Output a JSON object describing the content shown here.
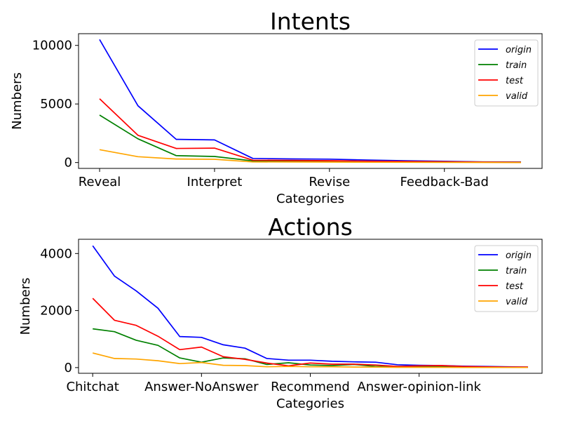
{
  "chart_data": [
    {
      "type": "line",
      "title": "Intents",
      "xlabel": "Categories",
      "ylabel": "Numbers",
      "x_tick_labels": [
        "Reveal",
        "Interpret",
        "Revise",
        "Feedback-Bad"
      ],
      "x_tick_positions": [
        0,
        3,
        6,
        9
      ],
      "yticks": [
        0,
        5000,
        10000
      ],
      "ylim": [
        -500,
        11000
      ],
      "xlim": [
        -0.55,
        11.55
      ],
      "legend_position": "top-right",
      "x": [
        0,
        1,
        2,
        3,
        4,
        5,
        6,
        7,
        8,
        9,
        10,
        11
      ],
      "series": [
        {
          "name": "origin",
          "color": "#0000ff",
          "values": [
            10500,
            4850,
            1980,
            1930,
            350,
            310,
            290,
            210,
            150,
            110,
            60,
            50
          ]
        },
        {
          "name": "train",
          "color": "#008000",
          "values": [
            4050,
            2030,
            590,
            520,
            140,
            120,
            110,
            90,
            70,
            50,
            30,
            25
          ]
        },
        {
          "name": "test",
          "color": "#ff0000",
          "values": [
            5450,
            2330,
            1200,
            1230,
            200,
            180,
            160,
            120,
            90,
            70,
            40,
            30
          ]
        },
        {
          "name": "valid",
          "color": "#ffa500",
          "values": [
            1100,
            500,
            300,
            280,
            50,
            45,
            40,
            30,
            20,
            15,
            10,
            5
          ]
        }
      ]
    },
    {
      "type": "line",
      "title": "Actions",
      "xlabel": "Categories",
      "ylabel": "Numbers",
      "x_tick_labels": [
        "Chitchat",
        "Answer-NoAnswer",
        "Recommend",
        "Answer-opinion-link"
      ],
      "x_tick_positions": [
        0,
        5,
        10,
        15
      ],
      "yticks": [
        0,
        2000,
        4000
      ],
      "ylim": [
        -200,
        4500
      ],
      "xlim": [
        -0.65,
        20.65
      ],
      "legend_position": "top-right",
      "x": [
        0,
        1,
        2,
        3,
        4,
        5,
        6,
        7,
        8,
        9,
        10,
        11,
        12,
        13,
        14,
        15,
        16,
        17,
        18,
        19,
        20
      ],
      "series": [
        {
          "name": "origin",
          "color": "#0000ff",
          "values": [
            4270,
            3210,
            2690,
            2080,
            1090,
            1060,
            800,
            680,
            320,
            260,
            260,
            220,
            200,
            190,
            100,
            80,
            70,
            50,
            40,
            30,
            20
          ]
        },
        {
          "name": "train",
          "color": "#008000",
          "values": [
            1360,
            1260,
            960,
            780,
            340,
            190,
            340,
            310,
            110,
            170,
            90,
            70,
            110,
            40,
            40,
            40,
            30,
            20,
            15,
            10,
            10
          ]
        },
        {
          "name": "test",
          "color": "#ff0000",
          "values": [
            2430,
            1660,
            1480,
            1100,
            630,
            720,
            380,
            290,
            160,
            60,
            160,
            120,
            120,
            90,
            40,
            60,
            70,
            40,
            30,
            20,
            20
          ]
        },
        {
          "name": "valid",
          "color": "#ffa500",
          "values": [
            510,
            320,
            300,
            240,
            140,
            180,
            80,
            70,
            30,
            40,
            30,
            30,
            20,
            20,
            10,
            10,
            10,
            5,
            5,
            5,
            5
          ]
        }
      ]
    }
  ]
}
